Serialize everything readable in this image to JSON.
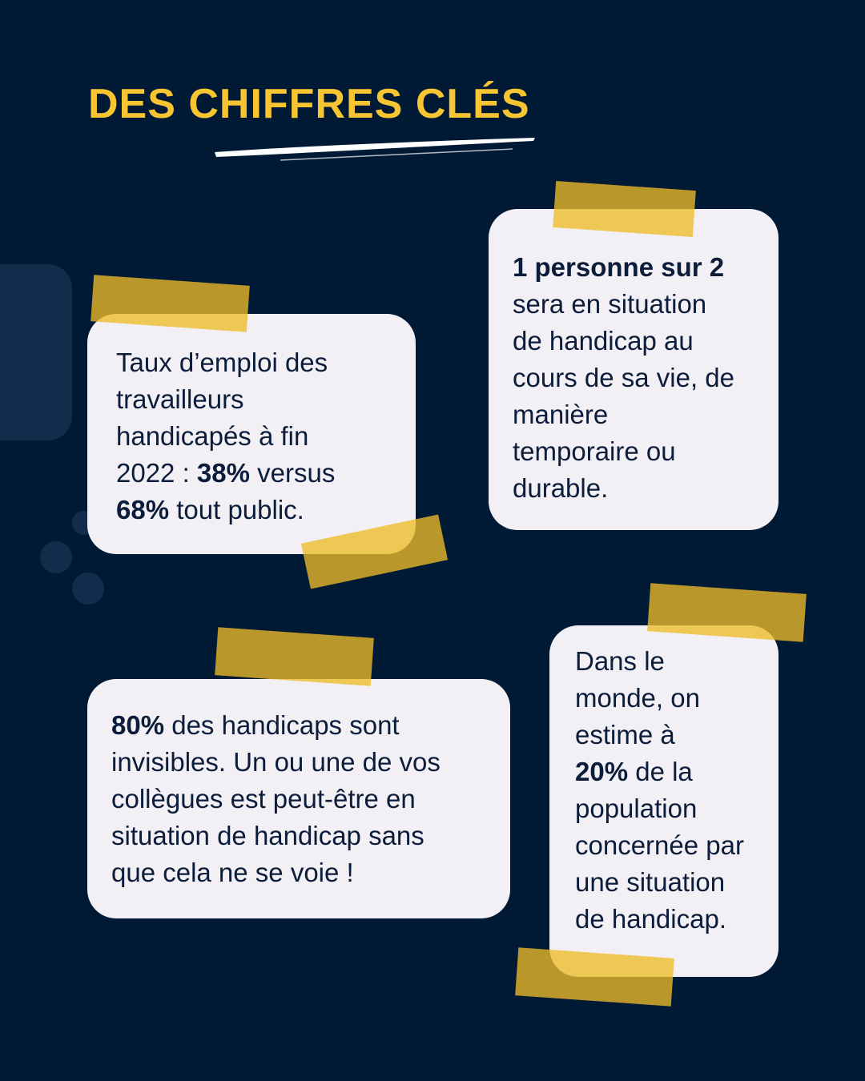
{
  "title": "DES CHIFFRES CLÉS",
  "cards": [
    {
      "lines": [
        [
          {
            "text": "Taux d’emploi des"
          }
        ],
        [
          {
            "text": "travailleurs"
          }
        ],
        [
          {
            "text": "handicapés à fin"
          }
        ],
        [
          {
            "text": "2022 : "
          },
          {
            "text": "38%",
            "bold": true
          },
          {
            "text": " versus"
          }
        ],
        [
          {
            "text": "68%",
            "bold": true
          },
          {
            "text": " tout public."
          }
        ]
      ]
    },
    {
      "lines": [
        [
          {
            "text": "1 personne sur 2",
            "bold": true
          }
        ],
        [
          {
            "text": "sera en situation"
          }
        ],
        [
          {
            "text": "de handicap au"
          }
        ],
        [
          {
            "text": "cours de sa vie, de"
          }
        ],
        [
          {
            "text": "manière"
          }
        ],
        [
          {
            "text": "temporaire ou"
          }
        ],
        [
          {
            "text": "durable."
          }
        ]
      ]
    },
    {
      "lines": [
        [
          {
            "text": "80%",
            "bold": true
          },
          {
            "text": " des handicaps sont"
          }
        ],
        [
          {
            "text": "invisibles. Un ou une de vos"
          }
        ],
        [
          {
            "text": "collègues est peut-être en"
          }
        ],
        [
          {
            "text": "situation de handicap sans"
          }
        ],
        [
          {
            "text": "que cela ne se voie !"
          }
        ]
      ]
    },
    {
      "lines": [
        [
          {
            "text": "Dans le"
          }
        ],
        [
          {
            "text": "monde, on"
          }
        ],
        [
          {
            "text": "estime à"
          }
        ],
        [
          {
            "text": "20%",
            "bold": true
          },
          {
            "text": " de la"
          }
        ],
        [
          {
            "text": "population"
          }
        ],
        [
          {
            "text": "concernée par"
          }
        ],
        [
          {
            "text": "une situation"
          }
        ],
        [
          {
            "text": "de handicap."
          }
        ]
      ]
    }
  ]
}
